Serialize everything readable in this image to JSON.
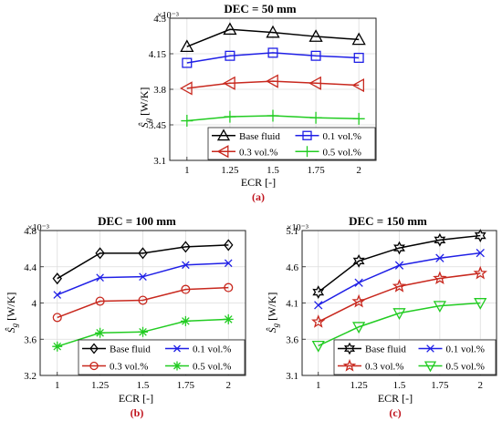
{
  "figure": {
    "panels": [
      {
        "id": "a",
        "panel_label": "(a)",
        "title": "DEC = 50 mm",
        "exponent": "×10⁻³",
        "xlabel": "ECR [-]",
        "ylabel": "Ŝ",
        "ylabel_sub": "g",
        "ylabel_unit": " [W/K]"
      },
      {
        "id": "b",
        "panel_label": "(b)",
        "title": "DEC = 100 mm",
        "exponent": "×10⁻³",
        "xlabel": "ECR [-]",
        "ylabel": "Ŝ",
        "ylabel_sub": "g",
        "ylabel_unit": " [W/K]"
      },
      {
        "id": "c",
        "panel_label": "(c)",
        "title": "DEC = 150 mm",
        "exponent": "×10⁻³",
        "xlabel": "ECR [-]",
        "ylabel": "Ŝ",
        "ylabel_sub": "g",
        "ylabel_unit": " [W/K]"
      }
    ],
    "colors": {
      "base": "#000000",
      "v01": "#1f1fe6",
      "v03": "#c8281e",
      "v05": "#22cc22",
      "panel_label": "#c0141e"
    }
  },
  "chart_data": [
    {
      "type": "line",
      "title": "DEC = 50 mm",
      "xlabel": "ECR [-]",
      "ylabel": "Ŝg [W/K]",
      "y_multiplier": "×10⁻³",
      "x": [
        1,
        1.25,
        1.5,
        1.75,
        2
      ],
      "x_ticks": [
        "1",
        "1.25",
        "1.5",
        "1.75",
        "2"
      ],
      "y_ticks": [
        "3.1",
        "3.45",
        "3.8",
        "4.15",
        "4.5"
      ],
      "xlim": [
        0.9,
        2.1
      ],
      "ylim": [
        3.1,
        4.5
      ],
      "legend_position": "bottom-right",
      "series": [
        {
          "name": "Base fluid",
          "values": [
            4.22,
            4.39,
            4.36,
            4.32,
            4.29
          ],
          "marker": "triangle-up",
          "color": "#000000"
        },
        {
          "name": "0.1 vol.%",
          "values": [
            4.06,
            4.13,
            4.16,
            4.13,
            4.11
          ],
          "marker": "square",
          "color": "#1f1fe6"
        },
        {
          "name": "0.3 vol.%",
          "values": [
            3.81,
            3.86,
            3.88,
            3.86,
            3.84
          ],
          "marker": "triangle-left",
          "color": "#c8281e"
        },
        {
          "name": "0.5 vol.%",
          "values": [
            3.49,
            3.53,
            3.54,
            3.52,
            3.51
          ],
          "marker": "plus",
          "color": "#22cc22"
        }
      ]
    },
    {
      "type": "line",
      "title": "DEC = 100 mm",
      "xlabel": "ECR [-]",
      "ylabel": "Ŝg [W/K]",
      "y_multiplier": "×10⁻³",
      "x": [
        1,
        1.25,
        1.5,
        1.75,
        2
      ],
      "x_ticks": [
        "1",
        "1.25",
        "1.5",
        "1.75",
        "2"
      ],
      "y_ticks": [
        "3.2",
        "3.6",
        "4",
        "4.4",
        "4.8"
      ],
      "xlim": [
        0.9,
        2.1
      ],
      "ylim": [
        3.2,
        4.8
      ],
      "legend_position": "bottom-right",
      "series": [
        {
          "name": "Base fluid",
          "values": [
            4.27,
            4.55,
            4.55,
            4.62,
            4.64
          ],
          "marker": "diamond",
          "color": "#000000"
        },
        {
          "name": "0.1 vol.%",
          "values": [
            4.09,
            4.28,
            4.29,
            4.42,
            4.44
          ],
          "marker": "x",
          "color": "#1f1fe6"
        },
        {
          "name": "0.3 vol.%",
          "values": [
            3.84,
            4.02,
            4.03,
            4.15,
            4.17
          ],
          "marker": "circle",
          "color": "#c8281e"
        },
        {
          "name": "0.5 vol.%",
          "values": [
            3.52,
            3.67,
            3.68,
            3.8,
            3.82
          ],
          "marker": "asterisk",
          "color": "#22cc22"
        }
      ]
    },
    {
      "type": "line",
      "title": "DEC = 150 mm",
      "xlabel": "ECR [-]",
      "ylabel": "Ŝg [W/K]",
      "y_multiplier": "×10⁻³",
      "x": [
        1,
        1.25,
        1.5,
        1.75,
        2
      ],
      "x_ticks": [
        "1",
        "1.25",
        "1.5",
        "1.75",
        "2"
      ],
      "y_ticks": [
        "3.1",
        "3.6",
        "4.1",
        "4.6",
        "5.1"
      ],
      "xlim": [
        0.9,
        2.1
      ],
      "ylim": [
        3.1,
        5.1
      ],
      "legend_position": "bottom-right",
      "series": [
        {
          "name": "Base fluid",
          "values": [
            4.25,
            4.68,
            4.86,
            4.97,
            5.03
          ],
          "marker": "hexagram",
          "color": "#000000"
        },
        {
          "name": "0.1 vol.%",
          "values": [
            4.07,
            4.38,
            4.62,
            4.72,
            4.79
          ],
          "marker": "x",
          "color": "#1f1fe6"
        },
        {
          "name": "0.3 vol.%",
          "values": [
            3.84,
            4.12,
            4.33,
            4.44,
            4.51
          ],
          "marker": "pentagram",
          "color": "#c8281e"
        },
        {
          "name": "0.5 vol.%",
          "values": [
            3.51,
            3.77,
            3.96,
            4.06,
            4.1
          ],
          "marker": "triangle-down",
          "color": "#22cc22"
        }
      ]
    }
  ]
}
